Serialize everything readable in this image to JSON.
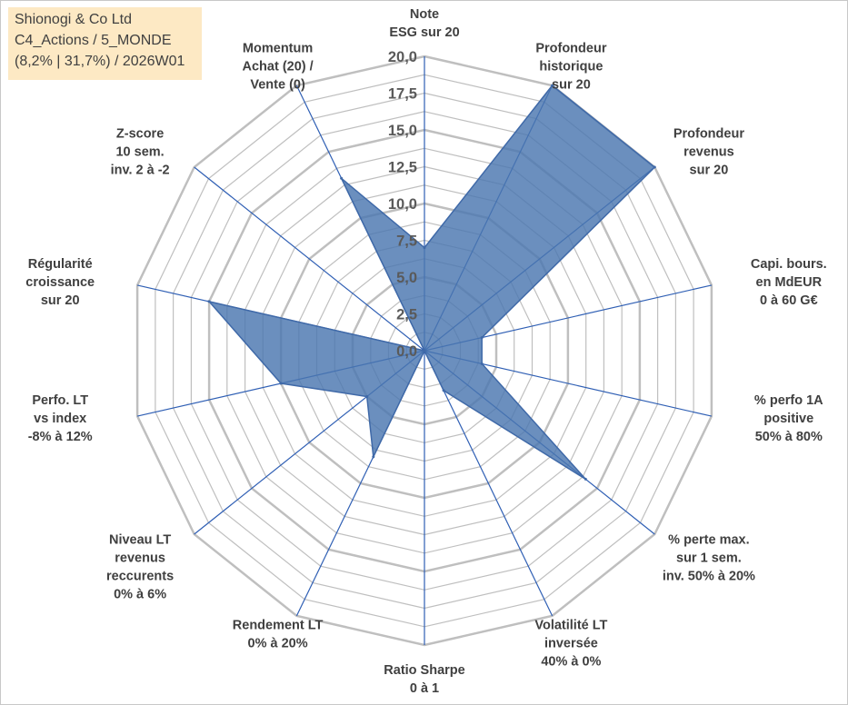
{
  "title": {
    "line1": "Shionogi & Co Ltd",
    "line2": "C4_Actions / 5_MONDE",
    "line3": "(8,2% | 31,7%) / 2026W01"
  },
  "colors": {
    "fill": "#4a76b0",
    "stroke": "#3f69a8",
    "axis": "#2f5fb4",
    "grid": "#bfbfbf"
  },
  "chart_data": {
    "type": "radar",
    "title": "Shionogi & Co Ltd",
    "rmin": 0,
    "rmax": 20,
    "ticks": [
      "0,0",
      "2,5",
      "5,0",
      "7,5",
      "10,0",
      "12,5",
      "15,0",
      "17,5",
      "20,0"
    ],
    "categories": [
      {
        "lines": [
          "Note",
          "ESG sur 20"
        ],
        "value": 7.0
      },
      {
        "lines": [
          "Profondeur",
          "historique",
          "sur 20"
        ],
        "value": 20.0
      },
      {
        "lines": [
          "Profondeur",
          "revenus",
          "sur 20"
        ],
        "value": 20.0
      },
      {
        "lines": [
          "Capi. bours.",
          "en MdEUR",
          "0 à 60 G€"
        ],
        "value": 4.0
      },
      {
        "lines": [
          "% perfo 1A",
          "positive",
          "50% à 80%"
        ],
        "value": 4.0
      },
      {
        "lines": [
          "% perte max.",
          "sur 1 sem.",
          "inv. 50% à 20%"
        ],
        "value": 14.0
      },
      {
        "lines": [
          "Volatilité LT",
          "inversée",
          "40% à 0%"
        ],
        "value": 3.0
      },
      {
        "lines": [
          "Ratio Sharpe",
          "0 à 1"
        ],
        "value": 0.0
      },
      {
        "lines": [
          "Rendement LT",
          "0% à 20%"
        ],
        "value": 8.0
      },
      {
        "lines": [
          "Niveau LT",
          "revenus",
          "reccurents",
          "0% à 6%"
        ],
        "value": 5.0
      },
      {
        "lines": [
          "Perfo. LT",
          "vs index",
          "-8% à 12%"
        ],
        "value": 10.0
      },
      {
        "lines": [
          "Régularité",
          "croissance",
          "sur 20"
        ],
        "value": 15.0
      },
      {
        "lines": [
          "Z-score",
          "10 sem.",
          "inv. 2 à -2"
        ],
        "value": 0.0
      },
      {
        "lines": [
          "Momentum",
          "Achat (20) /",
          "Vente (0)"
        ],
        "value": 13.0
      }
    ]
  }
}
